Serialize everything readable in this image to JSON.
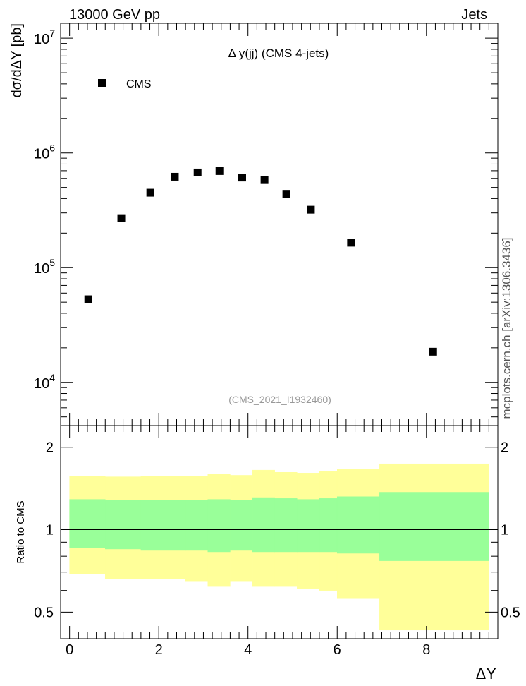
{
  "header": {
    "left": "13000 GeV pp",
    "right": "Jets"
  },
  "side_label": "mcplots.cern.ch [arXiv:1306.3436]",
  "chart_data": [
    {
      "type": "scatter",
      "title": "Δ y(jj) (CMS 4-jets)",
      "subtitle": "(CMS_2021_I1932460)",
      "ylabel": "dσ/dΔY [pb]",
      "xlabel": "ΔY",
      "yscale": "log",
      "ylim": [
        4200,
        13500000
      ],
      "xlim": [
        -0.2,
        9.6
      ],
      "yticks": [
        {
          "value": 10000,
          "base": "10",
          "exp": "4"
        },
        {
          "value": 100000,
          "base": "10",
          "exp": "5"
        },
        {
          "value": 1000000,
          "base": "10",
          "exp": "6"
        },
        {
          "value": 10000000,
          "base": "10",
          "exp": "7"
        }
      ],
      "legend": {
        "label": "CMS",
        "placement": "top-left"
      },
      "series": [
        {
          "name": "CMS",
          "x": [
            0.42,
            1.16,
            1.81,
            2.36,
            2.87,
            3.36,
            3.87,
            4.37,
            4.86,
            5.41,
            6.31,
            8.15
          ],
          "y": [
            53000,
            270000,
            450000,
            620000,
            675000,
            695000,
            610000,
            580000,
            440000,
            320000,
            165000,
            18500
          ]
        }
      ]
    },
    {
      "type": "area",
      "ylabel": "Ratio to CMS",
      "yscale": "log",
      "ylim": [
        0.4,
        2.4
      ],
      "xlim": [
        -0.2,
        9.6
      ],
      "yticks": [
        {
          "value": 0.5,
          "label": "0.5"
        },
        {
          "value": 1,
          "label": "1"
        },
        {
          "value": 2,
          "label": "2"
        }
      ],
      "xticks": [
        {
          "value": 0,
          "label": "0"
        },
        {
          "value": 2,
          "label": "2"
        },
        {
          "value": 4,
          "label": "4"
        },
        {
          "value": 6,
          "label": "6"
        },
        {
          "value": 8,
          "label": "8"
        }
      ],
      "reference_line": 1,
      "bins": [
        0,
        0.8,
        1.6,
        2.6,
        3.1,
        3.6,
        4.1,
        4.6,
        5.1,
        5.6,
        6.0,
        6.95,
        9.4
      ],
      "band_outer": {
        "color": "#ffff99",
        "lower": [
          0.69,
          0.66,
          0.66,
          0.65,
          0.62,
          0.65,
          0.62,
          0.62,
          0.61,
          0.6,
          0.56,
          0.43
        ],
        "upper": [
          1.57,
          1.56,
          1.57,
          1.57,
          1.6,
          1.58,
          1.65,
          1.62,
          1.61,
          1.63,
          1.66,
          1.74
        ]
      },
      "band_inner": {
        "color": "#99ff99",
        "lower": [
          0.86,
          0.85,
          0.84,
          0.84,
          0.83,
          0.84,
          0.83,
          0.83,
          0.83,
          0.83,
          0.82,
          0.77
        ],
        "upper": [
          1.29,
          1.28,
          1.28,
          1.28,
          1.29,
          1.28,
          1.31,
          1.3,
          1.29,
          1.3,
          1.32,
          1.37
        ]
      }
    }
  ]
}
